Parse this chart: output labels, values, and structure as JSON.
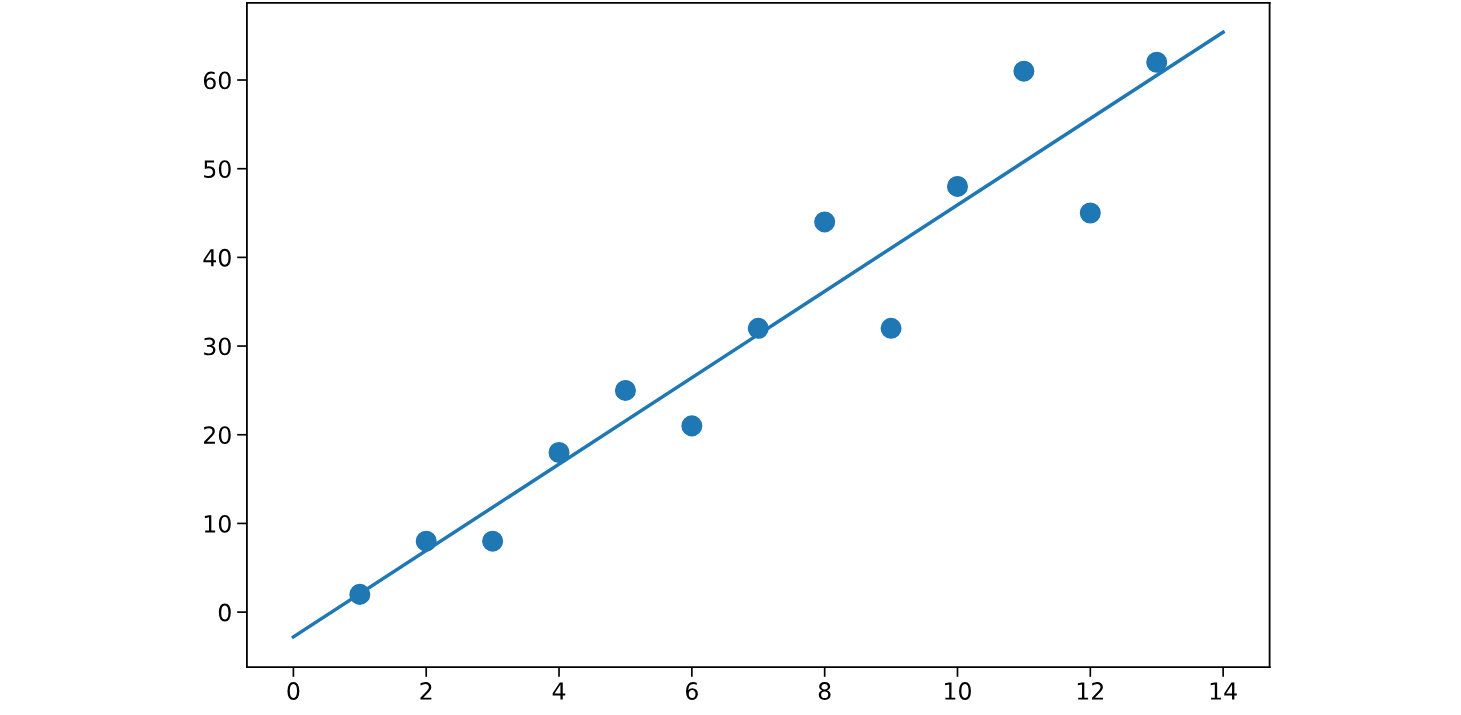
{
  "chart_data": {
    "type": "scatter",
    "x": [
      1,
      2,
      3,
      4,
      5,
      6,
      7,
      8,
      9,
      10,
      11,
      12,
      13
    ],
    "series": [
      {
        "color": "#1f77b4",
        "marker": "circle",
        "values": [
          2,
          8,
          8,
          18,
          25,
          21,
          32,
          44,
          32,
          48,
          61,
          45,
          62
        ]
      },
      {
        "type": "line",
        "color": "#1f77b4",
        "x": [
          0,
          14
        ],
        "values": [
          -2.8,
          65.4
        ]
      }
    ],
    "xlim": [
      -0.7,
      14.7
    ],
    "xticks": [
      0,
      2,
      4,
      6,
      8,
      10,
      12,
      14
    ],
    "ylim": [
      -6.2,
      68.7
    ],
    "yticks": [
      0,
      10,
      20,
      30,
      40,
      50,
      60
    ],
    "grid": false,
    "legend": false
  }
}
